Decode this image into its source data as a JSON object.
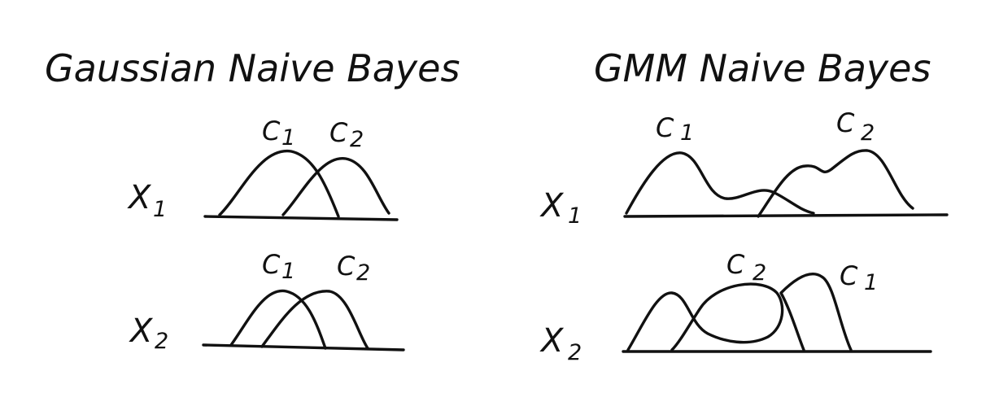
{
  "left_panel": {
    "title": "Gaussian Naive Bayes",
    "x1": {
      "var": "X",
      "sub": "1"
    },
    "x2": {
      "var": "X",
      "sub": "2"
    },
    "x1_labels": {
      "c1": "C",
      "c1_sub": "1",
      "c2": "C",
      "c2_sub": "2"
    },
    "x2_labels": {
      "c1": "C",
      "c1_sub": "1",
      "c2": "C",
      "c2_sub": "2"
    }
  },
  "right_panel": {
    "title": "GMM Naive Bayes",
    "x1": {
      "var": "X",
      "sub": "1"
    },
    "x2": {
      "var": "X",
      "sub": "2"
    },
    "x1_labels": {
      "c1": "C",
      "c1_sub": "1",
      "c2": "C",
      "c2_sub": "2"
    },
    "x2_labels": {
      "c1": "C",
      "c1_sub": "1",
      "c2": "C",
      "c2_sub": "2"
    }
  },
  "colors": {
    "ink": "#111111",
    "background": "#ffffff"
  }
}
